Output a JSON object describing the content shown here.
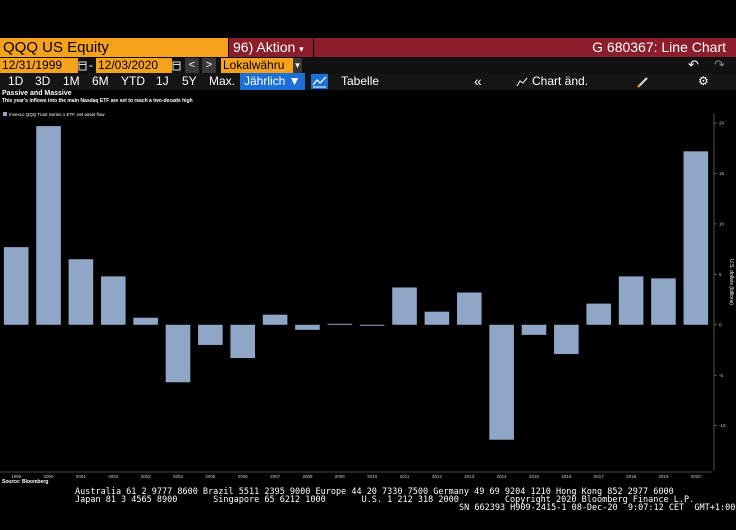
{
  "header": {
    "ticker": "QQQ US Equity",
    "action_label": "96) Aktion",
    "action_arrow": "▾",
    "title": "G 680367: Line Chart"
  },
  "date_row": {
    "start": "12/31/1999",
    "separator": "-",
    "end": "12/03/2020",
    "prev": "<",
    "next": ">",
    "currency": "Lokalwähru",
    "currency_arrow": "▾",
    "undo": "↶",
    "redo": "↷"
  },
  "range_tabs": [
    "1D",
    "3D",
    "1M",
    "6M",
    "YTD",
    "1J",
    "5Y",
    "Max."
  ],
  "toolbar": {
    "period": "Jährlich ▼",
    "table": "Tabelle",
    "collapse": "«",
    "chart_change": "Chart änd.",
    "edit_icon": "pencil-icon",
    "settings_icon": "gear-icon"
  },
  "chart_data": {
    "type": "bar",
    "title": "Passive and Massive",
    "subtitle": "This year's inflows into the main Nasdaq ETF are set to reach a two-decade high",
    "legend": [
      "Invesco QQQ Trust Series 1 ETF, net asset flow"
    ],
    "ylabel": "U.S. dollars (billions)",
    "categories": [
      "1999",
      "2000",
      "2001",
      "2002",
      "2003",
      "2004",
      "2005",
      "2006",
      "2007",
      "2008",
      "2009",
      "2010",
      "2011",
      "2012",
      "2013",
      "2014",
      "2015",
      "2016",
      "2017",
      "2018",
      "2019",
      "2020"
    ],
    "values": [
      7.7,
      19.7,
      6.5,
      4.8,
      0.7,
      -5.7,
      -2.0,
      -3.3,
      1.0,
      -0.5,
      0.1,
      -0.1,
      3.7,
      1.3,
      3.2,
      -11.4,
      -1.0,
      -2.9,
      2.1,
      4.8,
      4.6,
      17.2
    ],
    "ylim": [
      -14.5,
      21
    ],
    "yticks": [
      20,
      15,
      10,
      5,
      0,
      -5,
      -10
    ],
    "ytick_labels": [
      "20",
      "15",
      "10",
      "5",
      "0",
      "-5",
      "-10"
    ],
    "grid": false,
    "bar_color": "#8fa6c6",
    "source": "Source: Bloomberg"
  },
  "footer": {
    "line1": "Australia 61 2 9777 8600 Brazil 5511 2395 9000 Europe 44 20 7330 7500 Germany 49 69 9204 1210 Hong Kong 852 2977 6000",
    "line2": "Japan 81 3 4565 8900       Singapore 65 6212 1000       U.S. 1 212 318 2000         Copyright 2020 Bloomberg Finance L.P.",
    "line3": "SN 662393 H909-2415-1 08-Dec-20  9:07:12 CET  GMT+1:00"
  }
}
